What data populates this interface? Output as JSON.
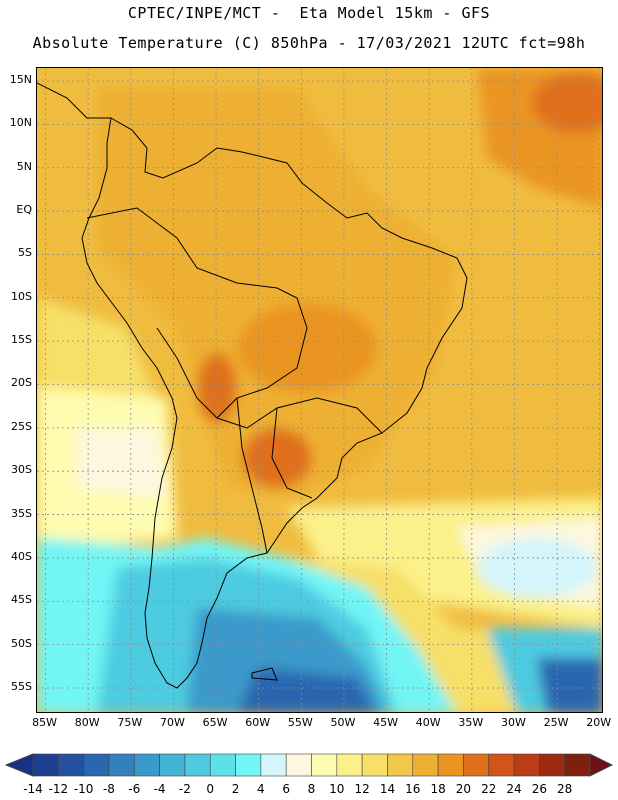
{
  "header": {
    "line1": "CPTEC/INPE/MCT -  Eta Model 15km - GFS",
    "line2": "Absolute Temperature (C) 850hPa - 17/03/2021 12UTC fct=98h"
  },
  "map": {
    "lat_labels": [
      "15N",
      "10N",
      "5N",
      "EQ",
      "5S",
      "10S",
      "15S",
      "20S",
      "25S",
      "30S",
      "35S",
      "40S",
      "45S",
      "50S",
      "55S"
    ],
    "lon_labels": [
      "85W",
      "80W",
      "75W",
      "70W",
      "65W",
      "60W",
      "55W",
      "50W",
      "45W",
      "40W",
      "35W",
      "30W",
      "25W",
      "20W"
    ],
    "lon_range": [
      -86,
      -19.5
    ],
    "lat_range": [
      -58,
      16.5
    ]
  },
  "colorbar": {
    "ticks": [
      "-14",
      "-12",
      "-10",
      "-8",
      "-6",
      "-4",
      "-2",
      "0",
      "2",
      "4",
      "6",
      "8",
      "10",
      "12",
      "14",
      "16",
      "18",
      "20",
      "22",
      "24",
      "26",
      "28"
    ],
    "colors": [
      "#1e3f8f",
      "#2451a0",
      "#2b66b0",
      "#3380be",
      "#3a9acb",
      "#43b3d6",
      "#4ecbe0",
      "#5ee0ea",
      "#72f5f5",
      "#d4f5fb",
      "#fdf7df",
      "#fefcb0",
      "#fbf08a",
      "#f7df68",
      "#f2c84a",
      "#eeb032",
      "#ea9523",
      "#e0701c",
      "#d2541a",
      "#bb3c16",
      "#9f2a12",
      "#7e1f10"
    ],
    "under_color": "#1a3080",
    "over_color": "#6b0f18"
  }
}
